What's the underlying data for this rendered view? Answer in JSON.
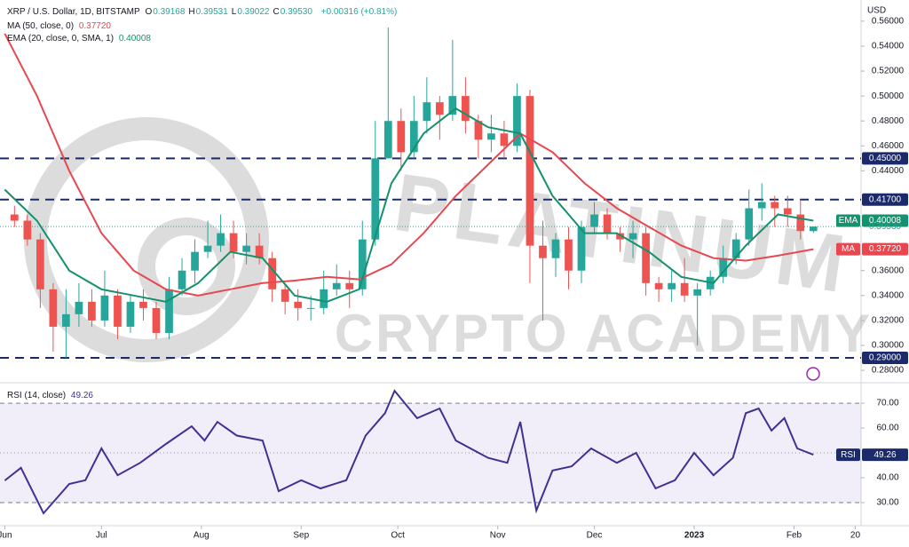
{
  "header": {
    "title": "XRP / U.S. Dollar, 1D, BITSTAMP",
    "ohlc": [
      {
        "key": "O",
        "label": "0.39168"
      },
      {
        "key": "H",
        "label": "0.39531"
      },
      {
        "key": "L",
        "label": "0.39022"
      },
      {
        "key": "C",
        "label": "0.39530"
      }
    ],
    "change": "+0.00316 (+0.81%)"
  },
  "watermark": {
    "line1": "PLATINUM",
    "line2": "CRYPTO ACADEMY"
  },
  "chart_data": [
    {
      "type": "candlestick",
      "axis_label": "USD",
      "xlim": [
        -1.5,
        265.8
      ],
      "ylim": [
        0.2708,
        0.577
      ],
      "up_color": "#26a69a",
      "down_color": "#ef5350",
      "x": [
        3,
        7,
        11,
        15,
        19,
        23,
        27,
        31,
        35,
        39,
        43,
        47,
        51,
        55,
        59,
        63,
        67,
        71,
        75,
        79,
        83,
        87,
        91,
        95,
        99,
        103,
        107,
        111,
        115,
        119,
        123,
        127,
        131,
        135,
        139,
        143,
        147,
        151,
        155,
        159,
        163,
        167,
        171,
        175,
        179,
        183,
        187,
        191,
        195,
        199,
        203,
        207,
        211,
        215,
        219,
        223,
        227,
        231,
        235,
        239,
        243,
        247,
        251
      ],
      "open": [
        0.405,
        0.4,
        0.385,
        0.345,
        0.315,
        0.325,
        0.335,
        0.32,
        0.34,
        0.315,
        0.335,
        0.33,
        0.31,
        0.345,
        0.36,
        0.375,
        0.38,
        0.39,
        0.375,
        0.38,
        0.37,
        0.345,
        0.335,
        0.33,
        0.33,
        0.345,
        0.35,
        0.345,
        0.385,
        0.45,
        0.48,
        0.455,
        0.48,
        0.495,
        0.485,
        0.5,
        0.48,
        0.465,
        0.47,
        0.46,
        0.5,
        0.38,
        0.37,
        0.385,
        0.36,
        0.395,
        0.405,
        0.39,
        0.385,
        0.39,
        0.35,
        0.345,
        0.35,
        0.34,
        0.345,
        0.355,
        0.37,
        0.385,
        0.41,
        0.415,
        0.41,
        0.405,
        0.39168
      ],
      "high": [
        0.412,
        0.405,
        0.39,
        0.35,
        0.345,
        0.35,
        0.345,
        0.36,
        0.345,
        0.34,
        0.345,
        0.335,
        0.355,
        0.37,
        0.385,
        0.4,
        0.405,
        0.4,
        0.39,
        0.39,
        0.375,
        0.35,
        0.345,
        0.34,
        0.36,
        0.365,
        0.36,
        0.4,
        0.48,
        0.555,
        0.49,
        0.5,
        0.515,
        0.5,
        0.545,
        0.515,
        0.485,
        0.485,
        0.48,
        0.51,
        0.505,
        0.4,
        0.39,
        0.395,
        0.4,
        0.415,
        0.41,
        0.395,
        0.4,
        0.395,
        0.355,
        0.36,
        0.37,
        0.35,
        0.36,
        0.38,
        0.39,
        0.425,
        0.43,
        0.42,
        0.42,
        0.417,
        0.39531
      ],
      "low": [
        0.395,
        0.38,
        0.33,
        0.295,
        0.29,
        0.315,
        0.315,
        0.315,
        0.305,
        0.31,
        0.32,
        0.305,
        0.305,
        0.34,
        0.35,
        0.37,
        0.375,
        0.37,
        0.365,
        0.365,
        0.335,
        0.325,
        0.32,
        0.32,
        0.325,
        0.34,
        0.33,
        0.34,
        0.38,
        0.45,
        0.44,
        0.45,
        0.47,
        0.465,
        0.48,
        0.47,
        0.45,
        0.455,
        0.45,
        0.455,
        0.35,
        0.32,
        0.355,
        0.345,
        0.35,
        0.39,
        0.385,
        0.375,
        0.37,
        0.34,
        0.335,
        0.335,
        0.335,
        0.3,
        0.34,
        0.35,
        0.365,
        0.38,
        0.4,
        0.395,
        0.395,
        0.385,
        0.39022
      ],
      "close": [
        0.4,
        0.385,
        0.345,
        0.315,
        0.325,
        0.335,
        0.32,
        0.34,
        0.315,
        0.335,
        0.33,
        0.31,
        0.345,
        0.36,
        0.375,
        0.38,
        0.39,
        0.375,
        0.38,
        0.37,
        0.345,
        0.335,
        0.33,
        0.33,
        0.345,
        0.35,
        0.345,
        0.385,
        0.45,
        0.48,
        0.455,
        0.48,
        0.495,
        0.485,
        0.5,
        0.48,
        0.465,
        0.47,
        0.46,
        0.5,
        0.38,
        0.37,
        0.385,
        0.36,
        0.395,
        0.405,
        0.39,
        0.385,
        0.39,
        0.35,
        0.345,
        0.35,
        0.34,
        0.345,
        0.355,
        0.37,
        0.385,
        0.41,
        0.415,
        0.41,
        0.405,
        0.39168,
        0.3953
      ],
      "last_price_label": "0.39530",
      "yticks": [
        {
          "value": 0.28,
          "label": "0.28000"
        },
        {
          "value": 0.3,
          "label": "0.30000"
        },
        {
          "value": 0.32,
          "label": "0.32000"
        },
        {
          "value": 0.34,
          "label": "0.34000"
        },
        {
          "value": 0.36,
          "label": "0.36000"
        },
        {
          "value": 0.44,
          "label": "0.44000"
        },
        {
          "value": 0.46,
          "label": "0.46000"
        },
        {
          "value": 0.48,
          "label": "0.48000"
        },
        {
          "value": 0.5,
          "label": "0.50000"
        },
        {
          "value": 0.52,
          "label": "0.52000"
        },
        {
          "value": 0.54,
          "label": "0.54000"
        },
        {
          "value": 0.56,
          "label": "0.56000"
        }
      ],
      "levels": [
        {
          "value": 0.45,
          "label": "0.45000"
        },
        {
          "value": 0.417,
          "label": "0.41700"
        },
        {
          "value": 0.29,
          "label": "0.29000"
        }
      ],
      "level_color": "#1b2a6b",
      "series": [
        {
          "name": "MA (50, close, 0)",
          "tag": "MA",
          "color": "#e8474f",
          "x": [
            0,
            10,
            20,
            30,
            40,
            50,
            60,
            70,
            80,
            90,
            100,
            110,
            120,
            130,
            140,
            150,
            160,
            170,
            180,
            190,
            200,
            210,
            220,
            230,
            240,
            251
          ],
          "values": [
            0.55,
            0.5,
            0.44,
            0.39,
            0.36,
            0.345,
            0.34,
            0.345,
            0.35,
            0.352,
            0.355,
            0.353,
            0.365,
            0.39,
            0.42,
            0.445,
            0.47,
            0.455,
            0.43,
            0.41,
            0.395,
            0.38,
            0.37,
            0.368,
            0.372,
            0.3772
          ],
          "last_label": "0.37720"
        },
        {
          "name": "EMA (20, close, 0, SMA, 1)",
          "tag": "EMA",
          "color": "#15916d",
          "x": [
            0,
            10,
            20,
            30,
            40,
            50,
            60,
            70,
            80,
            90,
            100,
            110,
            120,
            130,
            140,
            150,
            160,
            170,
            180,
            190,
            200,
            210,
            220,
            230,
            240,
            251
          ],
          "values": [
            0.425,
            0.4,
            0.36,
            0.345,
            0.34,
            0.335,
            0.35,
            0.375,
            0.37,
            0.34,
            0.335,
            0.345,
            0.43,
            0.47,
            0.49,
            0.475,
            0.47,
            0.42,
            0.39,
            0.39,
            0.375,
            0.355,
            0.35,
            0.38,
            0.405,
            0.40008
          ],
          "last_label": "0.40008"
        }
      ]
    },
    {
      "type": "line",
      "xlim": [
        -1.5,
        265.8
      ],
      "ylim": [
        20.7,
        77.9
      ],
      "yticks": [
        {
          "value": 30,
          "label": "30.00"
        },
        {
          "value": 40,
          "label": "40.00"
        },
        {
          "value": 60,
          "label": "60.00"
        },
        {
          "value": 70,
          "label": "70.00"
        }
      ],
      "midline": 50,
      "xticks": [
        {
          "value": 0,
          "label": "Jun"
        },
        {
          "value": 30,
          "label": "Jul"
        },
        {
          "value": 61,
          "label": "Aug"
        },
        {
          "value": 92,
          "label": "Sep"
        },
        {
          "value": 122,
          "label": "Oct"
        },
        {
          "value": 153,
          "label": "Nov"
        },
        {
          "value": 183,
          "label": "Dec"
        },
        {
          "value": 214,
          "label": "2023"
        },
        {
          "value": 245,
          "label": "Feb"
        },
        {
          "value": 264,
          "label": "20"
        }
      ],
      "series": [
        {
          "name": "RSI (14, close)",
          "tag": "RSI",
          "color": "#3f3193",
          "x": [
            0,
            5,
            12,
            20,
            25,
            30,
            35,
            42,
            50,
            58,
            62,
            66,
            72,
            80,
            85,
            92,
            98,
            106,
            112,
            118,
            121,
            128,
            135,
            140,
            150,
            156,
            160,
            165,
            170,
            176,
            182,
            190,
            196,
            202,
            208,
            214,
            220,
            226,
            230,
            234,
            238,
            242,
            246,
            251
          ],
          "values": [
            38.9,
            44,
            25.7,
            37.5,
            39,
            51.8,
            41,
            46,
            53.6,
            60.7,
            55,
            62.5,
            57,
            55,
            34.6,
            39,
            35.7,
            39,
            57,
            66,
            75,
            64,
            67.9,
            55,
            48,
            46,
            62.5,
            26.8,
            42.9,
            44.6,
            51.8,
            46,
            50,
            35.7,
            39,
            50,
            41,
            48,
            66,
            67.9,
            59,
            64,
            51.8,
            49.26
          ],
          "last_label": "49.26"
        }
      ]
    }
  ]
}
